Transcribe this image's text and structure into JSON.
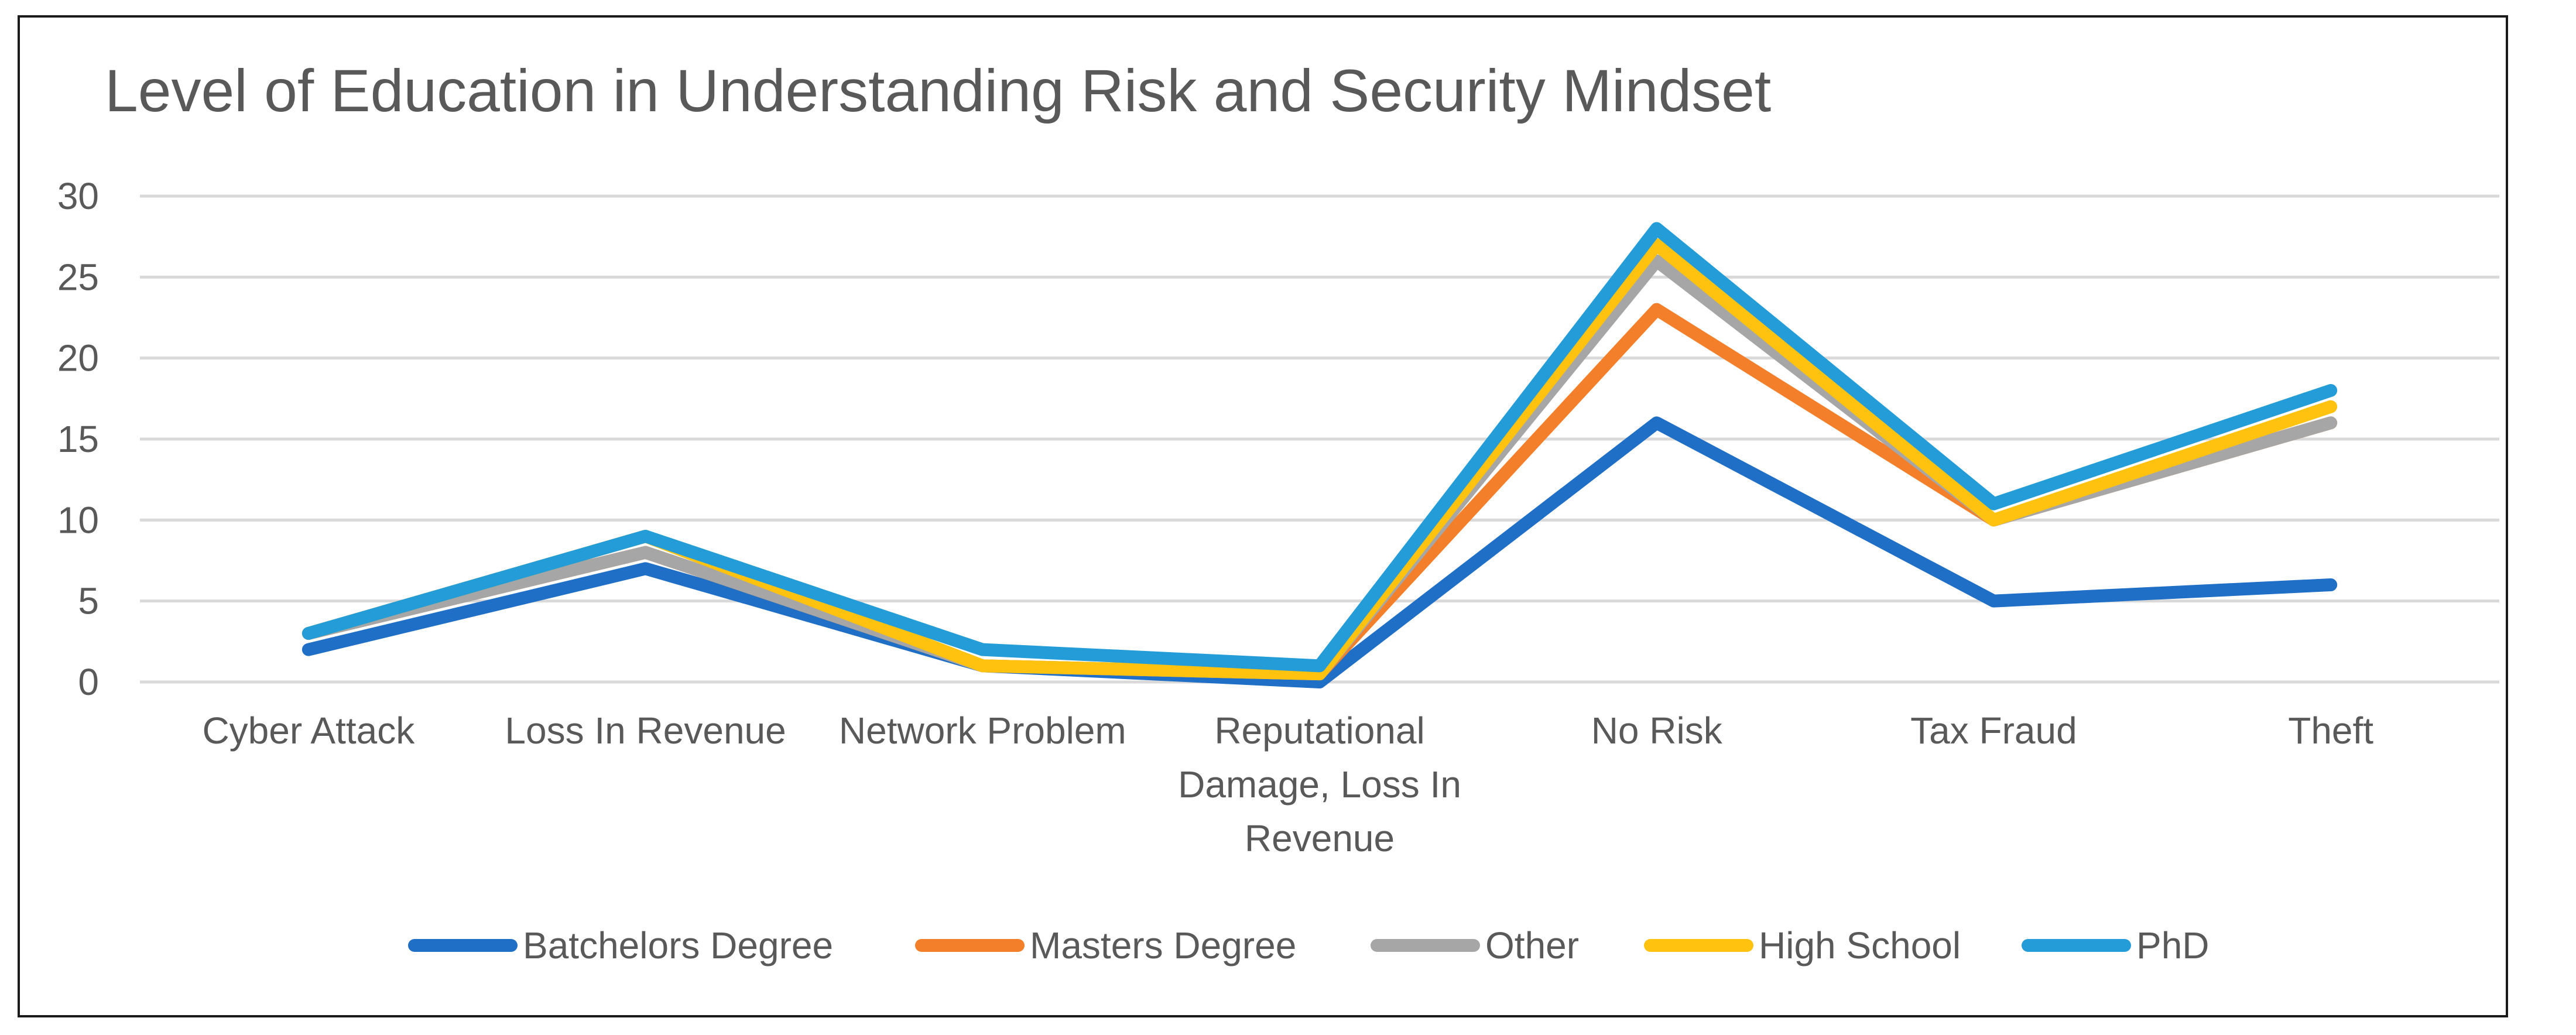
{
  "chart_data": {
    "type": "line",
    "title": "Level of Education in Understanding Risk and Security Mindset",
    "xlabel": "",
    "ylabel": "",
    "ylim": [
      0,
      30
    ],
    "yticks": [
      0,
      5,
      10,
      15,
      20,
      25,
      30
    ],
    "grid": true,
    "legend_position": "bottom",
    "categories": [
      [
        "Cyber Attack"
      ],
      [
        "Loss In Revenue"
      ],
      [
        "Network Problem"
      ],
      [
        "Reputational",
        "Damage, Loss In",
        "Revenue"
      ],
      [
        "No Risk"
      ],
      [
        "Tax Fraud"
      ],
      [
        "Theft"
      ]
    ],
    "series": [
      {
        "name": "Batchelors Degree",
        "color": "#1f6fc6",
        "values": [
          2,
          7,
          1,
          0,
          16,
          5,
          6
        ]
      },
      {
        "name": "Masters Degree",
        "color": "#f47f2a",
        "values": [
          3,
          8,
          1,
          0.5,
          23,
          10,
          16
        ]
      },
      {
        "name": "Other",
        "color": "#a6a6a6",
        "values": [
          3,
          8,
          1,
          0.5,
          26,
          10,
          16
        ]
      },
      {
        "name": "High School",
        "color": "#ffc20e",
        "values": [
          3,
          9,
          1,
          0.5,
          27,
          10,
          17
        ]
      },
      {
        "name": "PhD",
        "color": "#239cd7",
        "values": [
          3,
          9,
          2,
          1,
          28,
          11,
          18
        ]
      }
    ]
  }
}
